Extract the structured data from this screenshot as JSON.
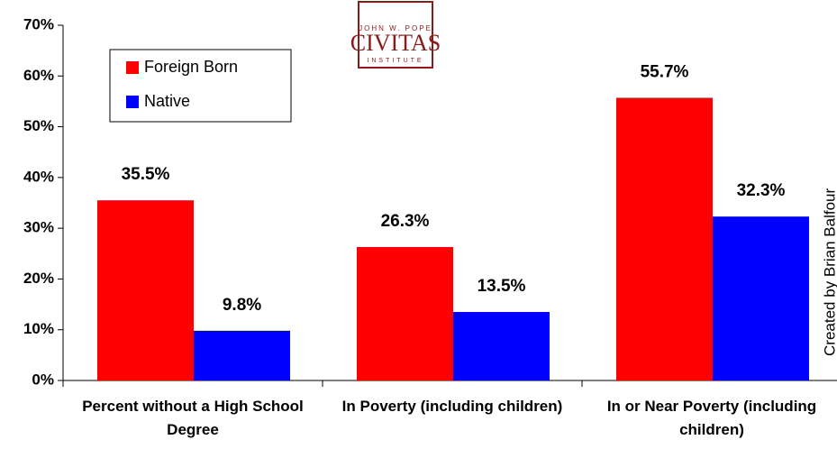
{
  "chart_data": {
    "type": "bar",
    "categories": [
      "Percent without a High School Degree",
      "In Poverty (including children)",
      "In or Near Poverty (including children)"
    ],
    "series": [
      {
        "name": "Foreign Born",
        "color": "#ff0000",
        "values": [
          35.5,
          26.3,
          55.7
        ],
        "value_labels": [
          "35.5%",
          "26.3%",
          "55.7%"
        ]
      },
      {
        "name": "Native",
        "color": "#0000ff",
        "values": [
          9.8,
          13.5,
          32.3
        ],
        "value_labels": [
          "9.8%",
          "13.5%",
          "32.3%"
        ]
      }
    ],
    "ylim": [
      0,
      70
    ],
    "yticks": [
      {
        "value": 0,
        "label": "0%"
      },
      {
        "value": 10,
        "label": "10%"
      },
      {
        "value": 20,
        "label": "20%"
      },
      {
        "value": 30,
        "label": "30%"
      },
      {
        "value": 40,
        "label": "40%"
      },
      {
        "value": 50,
        "label": "50%"
      },
      {
        "value": 60,
        "label": "60%"
      },
      {
        "value": 70,
        "label": "70%"
      }
    ],
    "grid": false,
    "legend": "upper left",
    "logo": {
      "top": "JOHN W. POPE",
      "name": "CIVITAS",
      "bottom": "INSTITUTE"
    },
    "credit": "Created by Brian Balfour"
  }
}
